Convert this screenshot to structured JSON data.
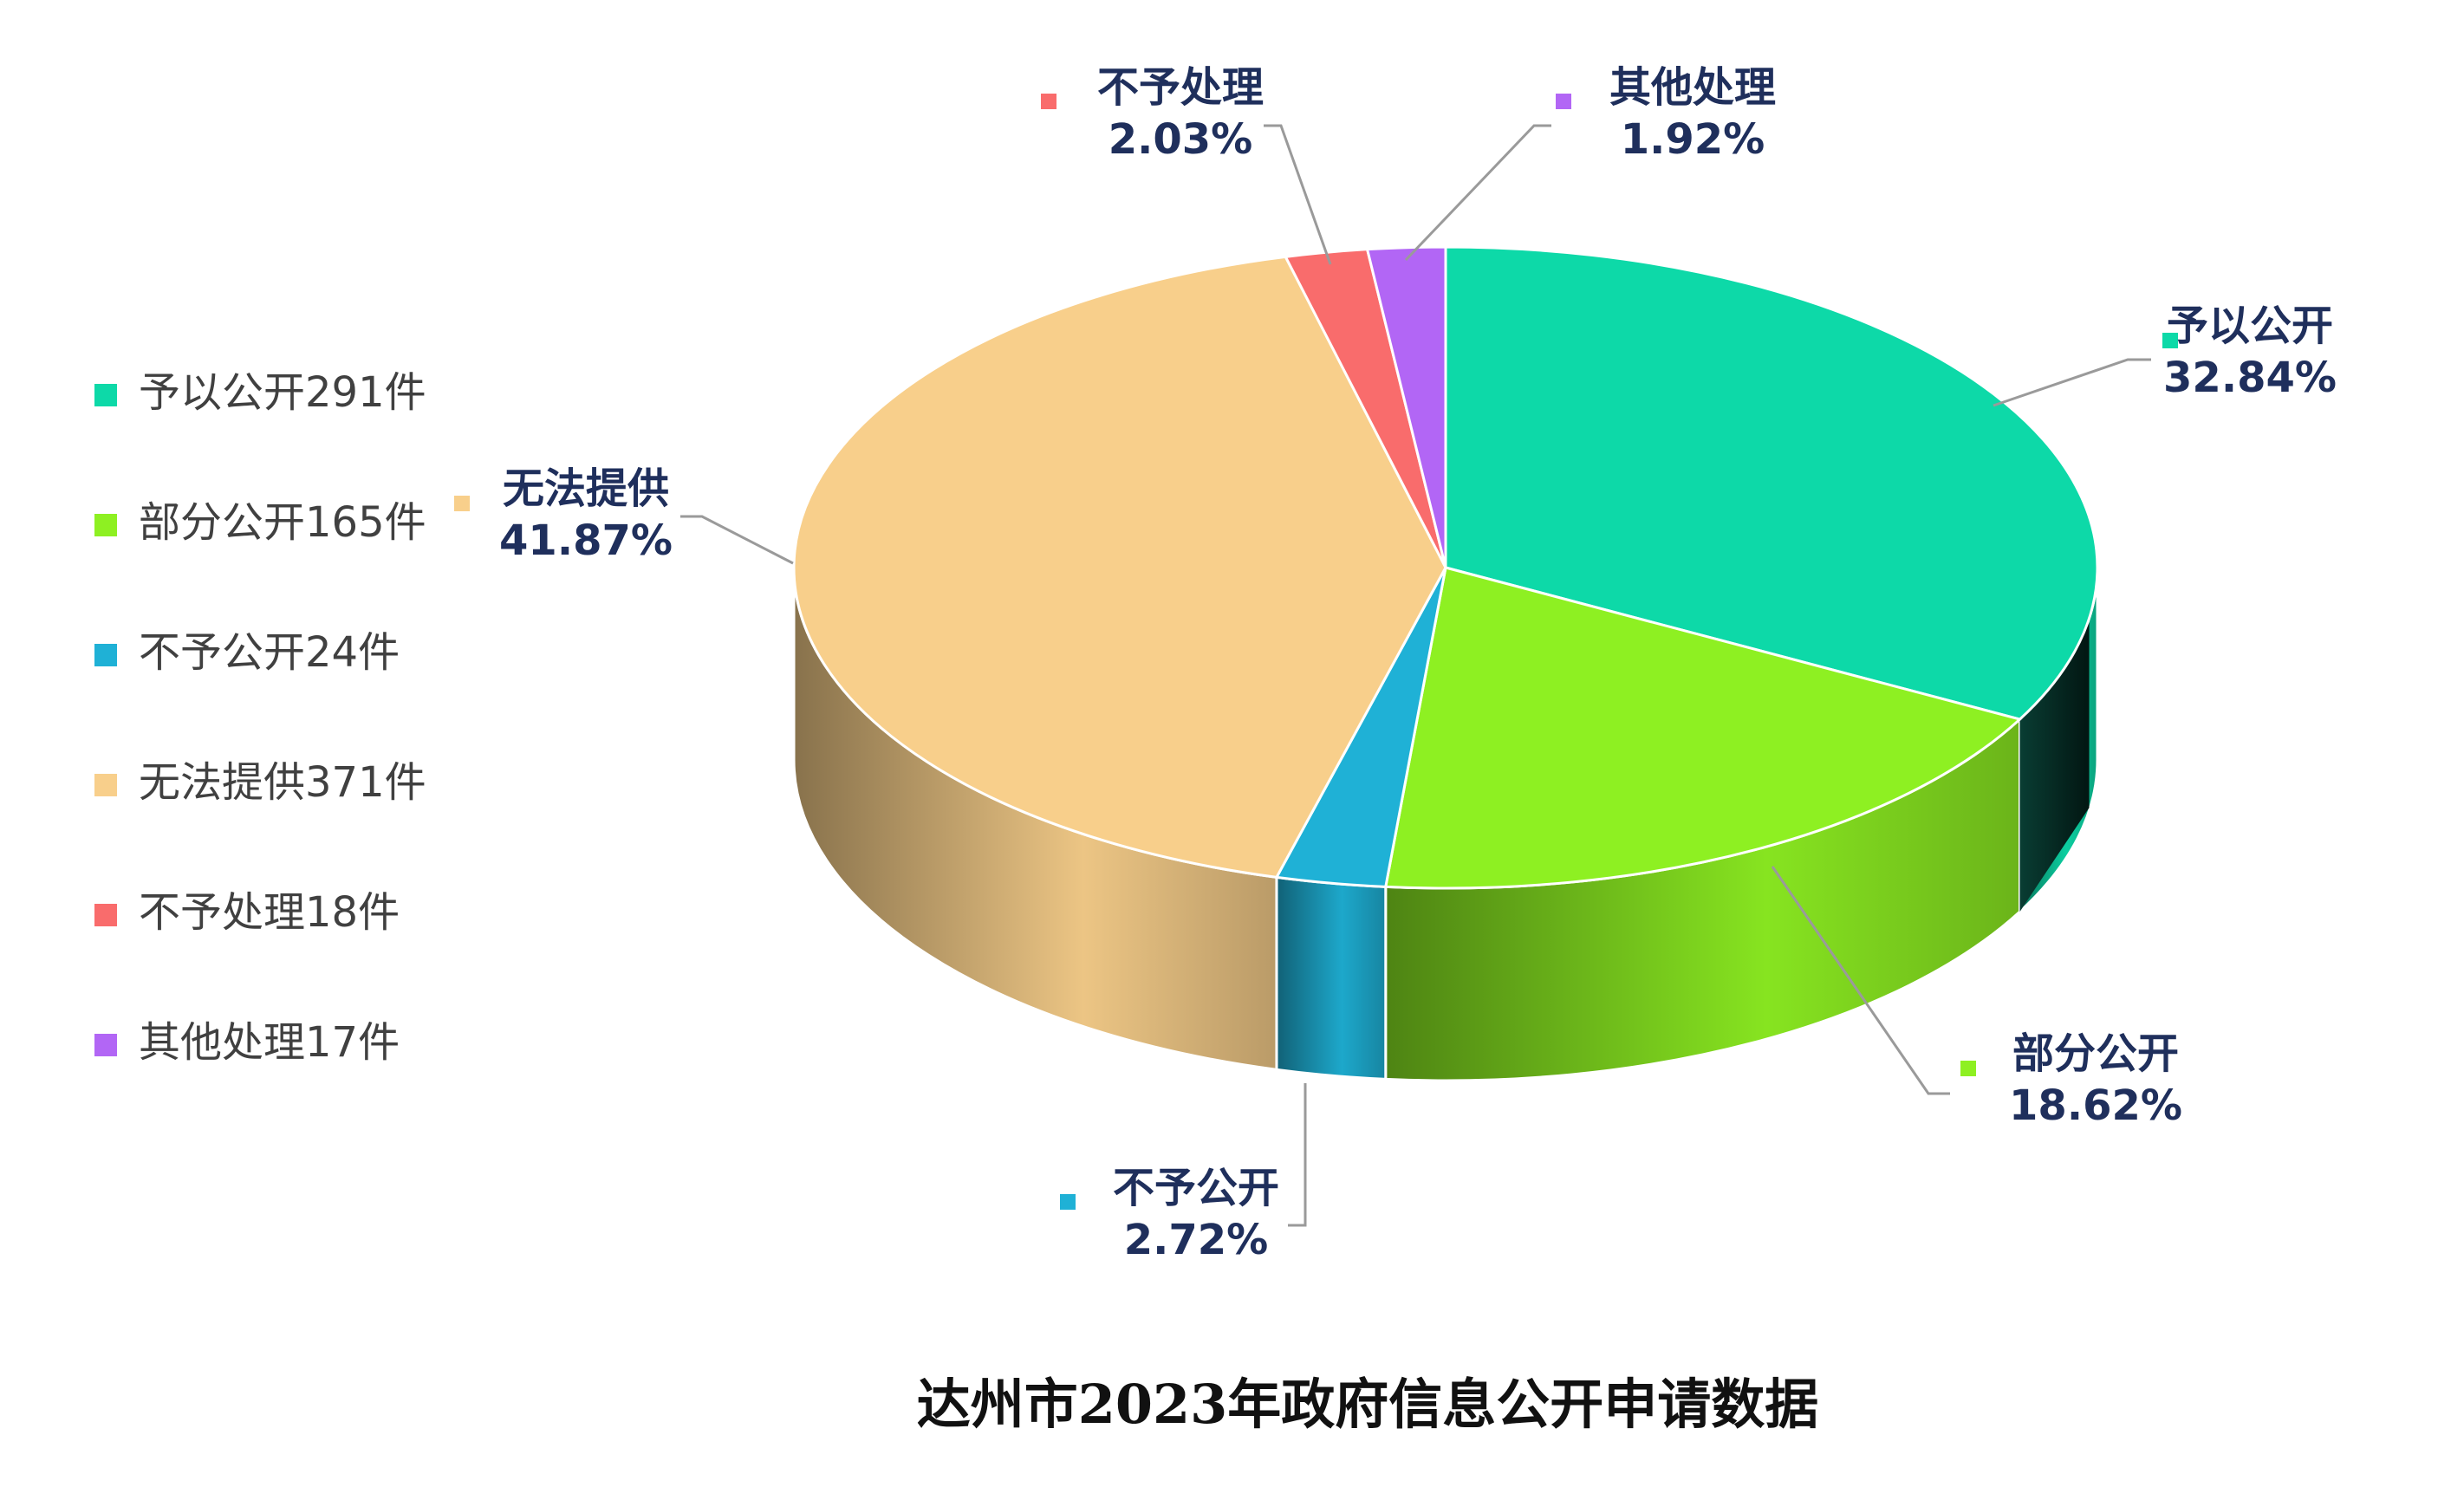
{
  "chart_data": {
    "type": "pie",
    "title": "达州市2023年政府信息公开申请数据",
    "slices": [
      {
        "key": "open",
        "name": "予以公开",
        "count": 291,
        "percent": 32.84,
        "percent_label": "32.84%",
        "legend_label": "予以公开291件",
        "color": "#0dd9a8"
      },
      {
        "key": "partial",
        "name": "部分公开",
        "count": 165,
        "percent": 18.62,
        "percent_label": "18.62%",
        "legend_label": "部分公开165件",
        "color": "#8ef022"
      },
      {
        "key": "withheld",
        "name": "不予公开",
        "count": 24,
        "percent": 2.72,
        "percent_label": "2.72%",
        "legend_label": "不予公开24件",
        "color": "#1fb1d6"
      },
      {
        "key": "unavailable",
        "name": "无法提供",
        "count": 371,
        "percent": 41.87,
        "percent_label": "41.87%",
        "legend_label": "无法提供371件",
        "color": "#f8cf8b"
      },
      {
        "key": "not-handled",
        "name": "不予处理",
        "count": 18,
        "percent": 2.03,
        "percent_label": "2.03%",
        "legend_label": "不予处理18件",
        "color": "#f96c6c"
      },
      {
        "key": "other",
        "name": "其他处理",
        "count": 17,
        "percent": 1.92,
        "percent_label": "1.92%",
        "legend_label": "其他处理17件",
        "color": "#b266f5"
      }
    ],
    "legend_position": "left",
    "style": "3d-pie"
  }
}
